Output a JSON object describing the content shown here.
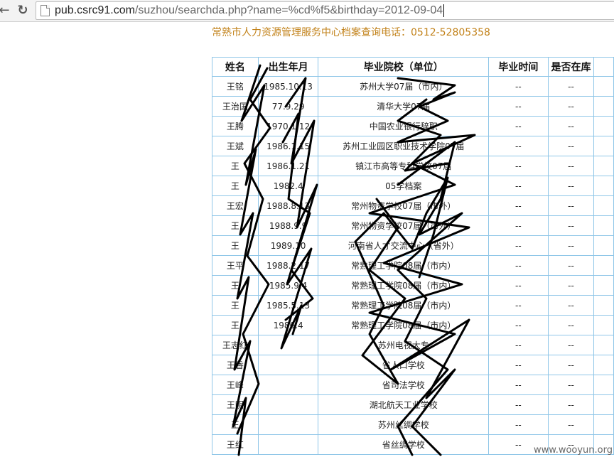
{
  "browser": {
    "url_host": "pub.csrc91.com",
    "url_rest": "/suzhou/searchda.php?name=%cd%f5&birthday=2012-09-04",
    "back_icon": "back-arrow-icon",
    "reload_icon": "reload-icon"
  },
  "page": {
    "heading": "常熟市人力资源管理服务中心档案查询电话：0512-52805358",
    "heading_color": "#c2821a"
  },
  "table": {
    "headers": [
      "姓名",
      "出生年月",
      "毕业院校（单位）",
      "毕业时间",
      "是否在库",
      ""
    ],
    "rows": [
      {
        "name": "王铭",
        "birth": "1985.10.13",
        "school": "苏州大学07届（市内）",
        "time": "--",
        "store": "--"
      },
      {
        "name": "王治国",
        "birth": "77.9.29",
        "school": "清华大学07届",
        "time": "--",
        "store": "--"
      },
      {
        "name": "王腾",
        "birth": "1970.1.12",
        "school": "中国农业银行辞职",
        "time": "--",
        "store": "--"
      },
      {
        "name": "王斌",
        "birth": "1986.1.15",
        "school": "苏州工业园区职业技术学院07届",
        "time": "--",
        "store": "--"
      },
      {
        "name": "王",
        "birth": "1986.1.21",
        "school": "镇江市高等专科学校07届",
        "time": "--",
        "store": "--"
      },
      {
        "name": "王",
        "birth": "1982.4",
        "school": "05学档案",
        "time": "--",
        "store": "--"
      },
      {
        "name": "王宏",
        "birth": "1988.8.13",
        "school": "常州物资学校07届（市外）",
        "time": "--",
        "store": "--"
      },
      {
        "name": "王",
        "birth": "1988.9.9",
        "school": "常州物资学校07届（市外）",
        "time": "--",
        "store": "--"
      },
      {
        "name": "王",
        "birth": "1989.10",
        "school": "河南省人才交流中心（省外）",
        "time": "--",
        "store": "--"
      },
      {
        "name": "王平",
        "birth": "1988.2.17",
        "school": "常熟理工学院08届（市内）",
        "time": "--",
        "store": "--"
      },
      {
        "name": "王",
        "birth": "1985.9.4",
        "school": "常熟理工学院08届（市内）",
        "time": "--",
        "store": "--"
      },
      {
        "name": "王",
        "birth": "1985.5.13",
        "school": "常熟理工学院08届（市内）",
        "time": "--",
        "store": "--"
      },
      {
        "name": "王",
        "birth": "1986.4",
        "school": "常熟理工学院08届（市内）",
        "time": "--",
        "store": "--"
      },
      {
        "name": "王志红",
        "birth": "",
        "school": "苏州电视大专",
        "time": "--",
        "store": "--"
      },
      {
        "name": "王香",
        "birth": "",
        "school": "省人口学校",
        "time": "--",
        "store": "--"
      },
      {
        "name": "王峰",
        "birth": "",
        "school": "省司法学校",
        "time": "--",
        "store": "--"
      },
      {
        "name": "王明",
        "birth": "",
        "school": "湖北航天工业学校",
        "time": "--",
        "store": "--"
      },
      {
        "name": "王",
        "birth": "",
        "school": "苏州丝绸学校",
        "time": "--",
        "store": "--"
      },
      {
        "name": "王红",
        "birth": "",
        "school": "省丝绸学校",
        "time": "--",
        "store": "--"
      }
    ]
  },
  "watermark": "www.wooyun.org"
}
